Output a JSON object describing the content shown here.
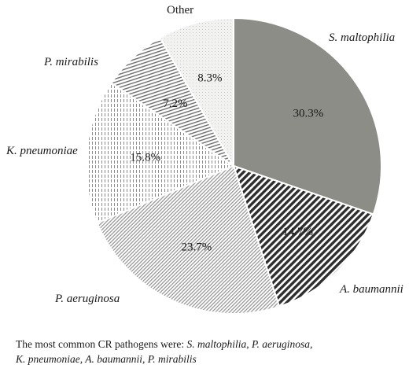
{
  "chart_data": {
    "type": "pie",
    "slices": [
      {
        "label": "S. maltophilia",
        "value": 30.3,
        "value_label": "30.3%",
        "italic": true,
        "fill": "#8d8d88",
        "pattern": "solid"
      },
      {
        "label": "A. baumannii",
        "value": 14.7,
        "value_label": "14.7%",
        "italic": true,
        "fill": "#ffffff",
        "pattern": "dense-diagonal"
      },
      {
        "label": "P. aeruginosa",
        "value": 23.7,
        "value_label": "23.7%",
        "italic": true,
        "fill": "#ffffff",
        "pattern": "fine-diagonal"
      },
      {
        "label": "K. pneumoniae",
        "value": 15.8,
        "value_label": "15.8%",
        "italic": true,
        "fill": "#ffffff",
        "pattern": "vertical-dash"
      },
      {
        "label": "P. mirabilis",
        "value": 7.2,
        "value_label": "7.2%",
        "italic": true,
        "fill": "#ffffff",
        "pattern": "horizontal"
      },
      {
        "label": "Other",
        "value": 8.3,
        "value_label": "8.3%",
        "italic": false,
        "fill": "#ffffff",
        "pattern": "light-dots"
      }
    ],
    "start": "12 o'clock",
    "direction": "clockwise",
    "edge_color": "#ffffff"
  },
  "caption": {
    "prefix": "The most common CR pathogens were: ",
    "pathogens_line1": "S. maltophilia, P. aeruginosa,",
    "pathogens_line2": "K. pneumoniae, A. baumannii, P. mirabilis"
  }
}
